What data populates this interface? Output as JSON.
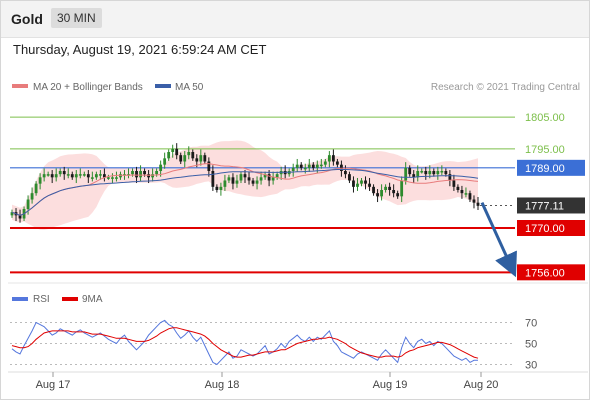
{
  "header": {
    "symbol": "Gold",
    "timeframe": "30 MIN",
    "datetime": "Thursday, August 19, 2021 6:59:24 AM CET"
  },
  "legend": {
    "ma20_label": "MA 20 + Bollinger Bands",
    "ma50_label": "MA 50",
    "credit": "Research © 2021 Trading Central"
  },
  "colors": {
    "up": "#2e8b2e",
    "down": "#1a1a1a",
    "ma20": "#e87c7c",
    "ma50": "#3a5fa8",
    "bands": "#fbd0d0",
    "resistance": "#7cbf4a",
    "pivot": "#3b6fd6",
    "support": "#e00000",
    "arrow": "#2f5fa0",
    "rsi": "#5577dd",
    "rsi_ma": "#e00000"
  },
  "chart_data": [
    {
      "type": "candlestick",
      "title": "Gold",
      "y_range": [
        1752,
        1812
      ],
      "price_levels": [
        {
          "label": "1805.00",
          "value": 1805.0,
          "kind": "resistance"
        },
        {
          "label": "1795.00",
          "value": 1795.0,
          "kind": "resistance"
        },
        {
          "label": "1789.00",
          "value": 1789.0,
          "kind": "pivot"
        },
        {
          "label": "1777.11",
          "value": 1777.11,
          "kind": "last"
        },
        {
          "label": "1770.00",
          "value": 1770.0,
          "kind": "support"
        },
        {
          "label": "1756.00",
          "value": 1756.0,
          "kind": "support"
        }
      ],
      "x_ticks": [
        "Aug 17",
        "Aug 18",
        "Aug 19",
        "Aug 20"
      ],
      "series": [
        {
          "name": "MA 20 + Bollinger Bands"
        },
        {
          "name": "MA 50"
        }
      ],
      "closes": [
        1775,
        1774,
        1773,
        1776,
        1779,
        1781,
        1784,
        1786,
        1787,
        1787,
        1786,
        1787,
        1788,
        1787,
        1787,
        1786,
        1787,
        1787,
        1787,
        1786,
        1786,
        1787,
        1787,
        1786,
        1786,
        1786,
        1786,
        1787,
        1787,
        1787,
        1788,
        1786,
        1788,
        1787,
        1786,
        1787,
        1788,
        1790,
        1792,
        1794,
        1795,
        1793,
        1791,
        1793,
        1794,
        1792,
        1791,
        1793,
        1791,
        1788,
        1783,
        1782,
        1783,
        1785,
        1786,
        1784,
        1785,
        1787,
        1786,
        1785,
        1784,
        1785,
        1786,
        1787,
        1785,
        1786,
        1787,
        1788,
        1787,
        1788,
        1789,
        1790,
        1789,
        1789,
        1790,
        1789,
        1790,
        1790,
        1791,
        1793,
        1791,
        1790,
        1788,
        1787,
        1785,
        1783,
        1784,
        1785,
        1784,
        1783,
        1781,
        1780,
        1782,
        1783,
        1782,
        1781,
        1780,
        1785,
        1789,
        1787,
        1786,
        1788,
        1788,
        1787,
        1788,
        1787,
        1788,
        1788,
        1787,
        1785,
        1783,
        1782,
        1781,
        1781,
        1779,
        1778,
        1777
      ],
      "trend_arrow": {
        "from_value": 1778,
        "to_value": 1756
      }
    },
    {
      "type": "line",
      "title": "RSI",
      "series": [
        {
          "name": "RSI"
        },
        {
          "name": "9MA"
        }
      ],
      "y_ticks": [
        "70",
        "50",
        "30"
      ],
      "y_range": [
        20,
        80
      ],
      "rsi": [
        45,
        42,
        40,
        48,
        55,
        62,
        70,
        68,
        66,
        62,
        58,
        60,
        64,
        62,
        60,
        58,
        61,
        63,
        60,
        58,
        56,
        58,
        60,
        57,
        54,
        52,
        50,
        55,
        58,
        52,
        48,
        44,
        48,
        52,
        58,
        62,
        66,
        70,
        72,
        68,
        66,
        60,
        55,
        58,
        62,
        56,
        52,
        56,
        48,
        40,
        32,
        30,
        34,
        38,
        42,
        36,
        38,
        44,
        42,
        40,
        38,
        40,
        44,
        48,
        40,
        42,
        45,
        50,
        46,
        52,
        55,
        58,
        54,
        52,
        56,
        52,
        56,
        54,
        58,
        62,
        52,
        48,
        42,
        40,
        38,
        36,
        40,
        42,
        40,
        38,
        36,
        34,
        40,
        44,
        40,
        36,
        32,
        46,
        56,
        50,
        46,
        52,
        54,
        50,
        52,
        48,
        52,
        50,
        46,
        42,
        38,
        36,
        34,
        36,
        32,
        34,
        34
      ],
      "ma9": [
        48,
        47,
        46,
        46,
        47,
        50,
        54,
        57,
        60,
        61,
        62,
        62,
        62,
        62,
        62,
        61,
        61,
        61,
        61,
        60,
        59,
        59,
        59,
        58,
        57,
        56,
        55,
        55,
        55,
        54,
        53,
        52,
        52,
        52,
        53,
        55,
        57,
        60,
        62,
        64,
        65,
        65,
        64,
        63,
        62,
        61,
        60,
        59,
        57,
        54,
        50,
        47,
        44,
        42,
        40,
        38,
        37,
        37,
        38,
        39,
        39,
        40,
        41,
        42,
        42,
        42,
        43,
        44,
        44,
        46,
        48,
        50,
        51,
        52,
        53,
        54,
        54,
        55,
        55,
        56,
        55,
        54,
        52,
        50,
        47,
        45,
        43,
        41,
        40,
        39,
        38,
        37,
        37,
        38,
        38,
        38,
        37,
        38,
        41,
        43,
        44,
        46,
        47,
        48,
        49,
        50,
        51,
        51,
        50,
        49,
        47,
        45,
        43,
        41,
        39,
        37,
        36
      ]
    }
  ]
}
